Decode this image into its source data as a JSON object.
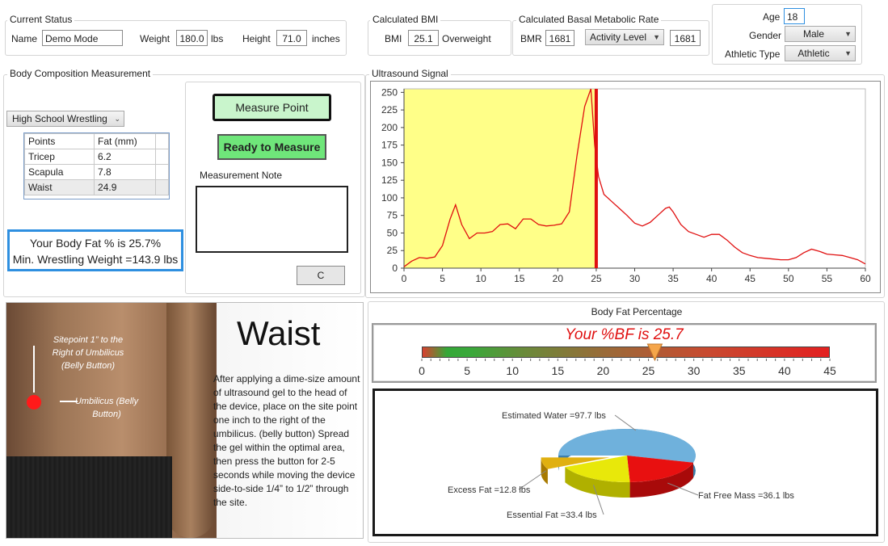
{
  "current_status": {
    "legend": "Current Status",
    "name_label": "Name",
    "name_value": "Demo Mode",
    "weight_label": "Weight",
    "weight_value": "180.0",
    "weight_unit": "lbs",
    "height_label": "Height",
    "height_value": "71.0",
    "height_unit": "inches"
  },
  "bmi": {
    "legend": "Calculated BMI",
    "label": "BMI",
    "value": "25.1",
    "category": "Overweight"
  },
  "bmr": {
    "legend": "Calculated Basal Metabolic Rate",
    "label": "BMR",
    "value": "1681",
    "activity_label": "Activity Level",
    "activity_value": "1681"
  },
  "profile": {
    "age_label": "Age",
    "age_value": "18",
    "gender_label": "Gender",
    "gender_value": "Male",
    "athletic_label": "Athletic Type",
    "athletic_value": "Athletic"
  },
  "body_comp": {
    "legend": "Body Composition Measurement",
    "protocol": "High School Wrestling",
    "columns": [
      "Points",
      "Fat (mm)"
    ],
    "rows": [
      {
        "point": "Tricep",
        "fat": "6.2"
      },
      {
        "point": "Scapula",
        "fat": "7.8"
      },
      {
        "point": "Waist",
        "fat": "24.9"
      }
    ],
    "result_line1": "Your Body Fat % is 25.7%",
    "result_line2": "Min. Wrestling Weight =143.9 lbs"
  },
  "controls": {
    "measure_point": "Measure Point",
    "ready": "Ready to Measure",
    "note_label": "Measurement Note",
    "note_value": "",
    "clear_button": "C"
  },
  "instruction": {
    "title": "Waist",
    "text": "After applying a dime-size amount of ultrasound gel to the head of the device, place on the site point one inch to the right of the umbilicus. (belly button) Spread the gel within the optimal area, then press the button for 2-5 seconds while moving the device  side-to-side 1/4” to 1/2” through the site.",
    "sitepoint_label": "Sitepoint 1” to the Right of Umbilicus (Belly Button)",
    "umbilicus_label": "Umbilicus (Belly Button)"
  },
  "bodyfat": {
    "title": "Body Fat Percentage",
    "headline": "Your %BF is 25.7",
    "value": 25.7,
    "scale_min": 0,
    "scale_max": 45,
    "ticks": [
      "0",
      "5",
      "10",
      "15",
      "20",
      "25",
      "30",
      "35",
      "40",
      "45"
    ]
  },
  "colors": {
    "accent_blue": "#2e8fe0",
    "marker_red": "#e01010",
    "zone_yellow": "#ffff88",
    "green_button": "#6fe67a",
    "light_green_button": "#c9f5cc",
    "headline_red": "#e01010",
    "water": "#6fb1dc",
    "fat_free": "#e81010",
    "essential": "#e8e80a",
    "excess": "#e0b010"
  },
  "chart_data": [
    {
      "type": "line",
      "title": "Ultrasound Signal",
      "xlabel": "",
      "ylabel": "",
      "xlim": [
        0,
        60
      ],
      "ylim": [
        0,
        255
      ],
      "xticks": [
        0,
        5,
        10,
        15,
        20,
        25,
        30,
        35,
        40,
        45,
        50,
        55,
        60
      ],
      "yticks": [
        0,
        25,
        50,
        75,
        100,
        125,
        150,
        175,
        200,
        225,
        250
      ],
      "grid": false,
      "highlight_range": [
        0,
        25
      ],
      "marker_x": 25,
      "series": [
        {
          "x": [
            0,
            1,
            2,
            3,
            4,
            5,
            6,
            6.7,
            7.5,
            8.5,
            9.5,
            10.5,
            11.5,
            12.5,
            13.5,
            14.5,
            15.5,
            16.5,
            17.5,
            18.5,
            19.5,
            20.5,
            21.5,
            22.5,
            23.5,
            24.3,
            24.8,
            25.3,
            26,
            27,
            28,
            29,
            30,
            31,
            32,
            33,
            34,
            34.5,
            35,
            36,
            37,
            38,
            39,
            40,
            41,
            42,
            43,
            44,
            45,
            46,
            47,
            48,
            49,
            50,
            51,
            52,
            53,
            54,
            55,
            56,
            57,
            58,
            59,
            60
          ],
          "y": [
            2,
            10,
            15,
            14,
            16,
            32,
            70,
            90,
            62,
            42,
            50,
            50,
            52,
            62,
            63,
            56,
            70,
            70,
            62,
            60,
            61,
            63,
            80,
            160,
            230,
            255,
            175,
            130,
            105,
            95,
            85,
            75,
            64,
            60,
            65,
            75,
            85,
            87,
            80,
            62,
            52,
            48,
            44,
            48,
            48,
            40,
            30,
            22,
            18,
            15,
            14,
            13,
            12,
            12,
            15,
            22,
            27,
            24,
            20,
            19,
            18,
            15,
            12,
            6
          ]
        }
      ]
    },
    {
      "type": "pie",
      "title": "",
      "slices": [
        {
          "label": "Estimated Water",
          "value": 97.7,
          "display": "Estimated Water =97.7 lbs"
        },
        {
          "label": "Fat Free Mass",
          "value": 36.1,
          "display": "Fat Free Mass =36.1 lbs"
        },
        {
          "label": "Essential Fat",
          "value": 33.4,
          "display": "Essential Fat =33.4 lbs"
        },
        {
          "label": "Excess Fat",
          "value": 12.8,
          "display": "Excess Fat =12.8 lbs"
        }
      ]
    }
  ]
}
